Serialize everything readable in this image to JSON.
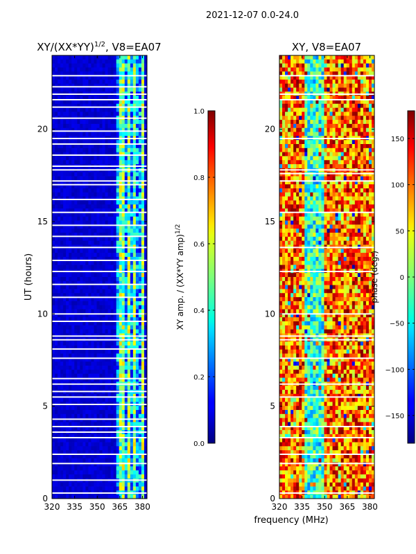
{
  "figure": {
    "suptitle": "2021-12-07 0.0-24.0"
  },
  "chart_data": [
    {
      "type": "heatmap",
      "title": "XY/(XX*YY)",
      "title_superscript": "1/2",
      "title_suffix": ", V8=EA07",
      "xlabel": "",
      "ylabel": "UT (hours)",
      "xlim": [
        320,
        383
      ],
      "ylim": [
        0,
        24
      ],
      "xticks": [
        320,
        335,
        350,
        365,
        380
      ],
      "yticks": [
        0,
        5,
        10,
        15,
        20
      ],
      "colorbar": {
        "label": "XY amp. / (XX*YY amp)",
        "label_superscript": "1/2",
        "range": [
          0.0,
          1.0
        ],
        "ticks": [
          "0.0",
          "0.2",
          "0.4",
          "0.6",
          "0.8",
          "1.0"
        ],
        "colormap": "jet"
      },
      "description_values": {
        "background_level": 0.05,
        "bright_band_mhz": [
          363,
          382
        ],
        "bright_band_level": 0.45,
        "flagged_hours_approx": [
          0.3,
          1.0,
          1.9,
          2.4,
          3.3,
          3.6,
          3.9,
          4.3,
          5.1,
          5.5,
          5.8,
          6.2,
          6.5,
          7.6,
          8.1,
          8.6,
          8.8,
          9.6,
          10.0,
          10.9,
          11.6,
          12.3,
          12.9,
          13.6,
          14.2,
          14.8,
          15.5,
          16.2,
          17.0,
          17.2,
          17.8,
          18.0,
          18.6,
          19.2,
          19.5,
          19.9,
          20.6,
          21.2,
          21.6,
          21.9,
          22.3,
          22.9
        ]
      }
    },
    {
      "type": "heatmap",
      "title": "XY, V8=EA07",
      "xlabel": "frequency (MHz)",
      "ylabel": "",
      "xlim": [
        320,
        383
      ],
      "ylim": [
        0,
        24
      ],
      "xticks": [
        320,
        335,
        350,
        365,
        380
      ],
      "yticks": [
        0,
        5,
        10,
        15,
        20
      ],
      "colorbar": {
        "label": "phase (deg.)",
        "range": [
          -180,
          180
        ],
        "ticks": [
          "−150",
          "−100",
          "−50",
          "0",
          "50",
          "100",
          "150"
        ],
        "tick_values": [
          -150,
          -100,
          -50,
          0,
          50,
          100,
          150
        ],
        "colormap": "jet"
      },
      "description_values": {
        "blue_stripe_mhz": [
          336,
          350
        ],
        "flagged_hours_approx": [
          0.3,
          1.9,
          2.4,
          3.3,
          3.9,
          5.5,
          6.2,
          7.6,
          8.6,
          8.8,
          10.0,
          12.3,
          13.6,
          15.5,
          17.2,
          17.6,
          17.8,
          19.5,
          21.6,
          21.9,
          22.9
        ]
      }
    }
  ]
}
